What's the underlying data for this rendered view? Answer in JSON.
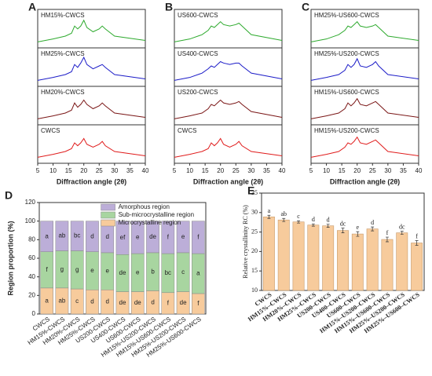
{
  "chart_data": [
    {
      "type": "line",
      "panel": "A",
      "x_label": "Diffraction angle (2θ)",
      "xlim": [
        5,
        40
      ],
      "xticks": [
        5,
        10,
        15,
        20,
        25,
        30,
        35,
        40
      ],
      "x": [
        5,
        10,
        14,
        16,
        17,
        18,
        19,
        20,
        21,
        23,
        25,
        26,
        27,
        30,
        40
      ],
      "series": [
        {
          "name": "HM15%-CWCS",
          "color": "#2eaa2e",
          "values": [
            1,
            2,
            3,
            4,
            6.5,
            5.5,
            6.5,
            8.5,
            6,
            4.5,
            5.5,
            6.5,
            5.5,
            3,
            1.5
          ]
        },
        {
          "name": "HM25%-CWCS",
          "color": "#1c1cc8",
          "values": [
            1,
            2,
            3,
            4,
            6.5,
            5.5,
            7,
            9,
            6.5,
            5,
            6,
            6.5,
            5.5,
            3,
            1.5
          ]
        },
        {
          "name": "HM20%-CWCS",
          "color": "#7a1616",
          "values": [
            1,
            2,
            3,
            4,
            6.5,
            5,
            6,
            7.5,
            6,
            4.5,
            5.5,
            6.5,
            5.5,
            3,
            1.5
          ]
        },
        {
          "name": "CWCS",
          "color": "#e01c1c",
          "values": [
            1,
            2,
            3,
            4,
            6,
            5,
            6,
            7.5,
            5.5,
            4.5,
            5.5,
            6.5,
            5,
            3,
            1.5
          ]
        }
      ]
    },
    {
      "type": "line",
      "panel": "B",
      "x_label": "Diffraction angle (2θ)",
      "xlim": [
        5,
        40
      ],
      "xticks": [
        5,
        10,
        15,
        20,
        25,
        30,
        35,
        40
      ],
      "x": [
        5,
        10,
        14,
        16,
        17,
        18,
        19,
        20,
        21,
        23,
        25,
        26,
        27,
        30,
        40
      ],
      "series": [
        {
          "name": "US600-CWCS",
          "color": "#2eaa2e",
          "values": [
            1,
            2,
            3.5,
            5,
            6.5,
            6,
            7,
            8,
            7,
            6.5,
            7,
            7.5,
            6.5,
            3.5,
            1.5
          ]
        },
        {
          "name": "US400-CWCS",
          "color": "#1c1cc8",
          "values": [
            1,
            2,
            3.5,
            5,
            6,
            5.5,
            6.5,
            7.5,
            7,
            6.5,
            7,
            7,
            6,
            3.5,
            1.5
          ]
        },
        {
          "name": "US200-CWCS",
          "color": "#7a1616",
          "values": [
            1,
            2,
            3,
            4.5,
            6,
            5.5,
            6.5,
            7.5,
            6.5,
            6,
            6.5,
            7,
            6,
            3.5,
            1.5
          ]
        },
        {
          "name": "CWCS",
          "color": "#e01c1c",
          "values": [
            1,
            2,
            3,
            4,
            6,
            5,
            6,
            7.5,
            5.5,
            4.5,
            5.5,
            6.5,
            5,
            3,
            1.5
          ]
        }
      ]
    },
    {
      "type": "line",
      "panel": "C",
      "x_label": "Diffraction angle (2θ)",
      "xlim": [
        5,
        40
      ],
      "xticks": [
        5,
        10,
        15,
        20,
        25,
        30,
        35,
        40
      ],
      "x": [
        5,
        10,
        14,
        16,
        17,
        18,
        19,
        20,
        21,
        23,
        25,
        26,
        27,
        30,
        40
      ],
      "series": [
        {
          "name": "HM25%-US600-CWCS",
          "color": "#2eaa2e",
          "values": [
            1,
            2,
            3.5,
            5,
            6.5,
            6,
            7,
            8,
            6.5,
            6,
            6.5,
            7,
            6,
            3,
            1.5
          ]
        },
        {
          "name": "HM25%-US200-CWCS",
          "color": "#1c1cc8",
          "values": [
            1,
            2,
            3,
            4.5,
            6.5,
            5.5,
            6.5,
            8.5,
            6,
            5.5,
            6.5,
            7.5,
            6,
            3,
            1.5
          ]
        },
        {
          "name": "HM15%-US600-CWCS",
          "color": "#7a1616",
          "values": [
            1,
            2,
            3,
            4.5,
            6.5,
            5.5,
            6.5,
            8,
            6,
            5.5,
            6.5,
            7,
            6,
            3,
            1.5
          ]
        },
        {
          "name": "HM15%-US200-CWCS",
          "color": "#e01c1c",
          "values": [
            1,
            2,
            3,
            4.5,
            6,
            5.5,
            6.5,
            8,
            6,
            5.5,
            6.5,
            7,
            6,
            3,
            1.5
          ]
        }
      ]
    },
    {
      "type": "stacked_bar",
      "panel": "D",
      "y_label": "Region proportion (%)",
      "ylim": [
        0,
        120
      ],
      "yticks": [
        0,
        20,
        40,
        60,
        80,
        100,
        120
      ],
      "categories": [
        "CWCS",
        "HM15%-CWCS",
        "HM20%-CWCS",
        "HM25%-CWCS",
        "US200-CWCS",
        "US400-CWCS",
        "US600-CWCS",
        "HM15%-US200-CWCS",
        "HM15%-US600-CWCS",
        "HM25%-US200-CWCS",
        "HM25%-US600-CWCS"
      ],
      "series": [
        {
          "name": "Microcrystalline region",
          "color": "#f7cb9c",
          "values": [
            28,
            28,
            27,
            26,
            26,
            24,
            24,
            25,
            23,
            24,
            22
          ],
          "letters": [
            "a",
            "ab",
            "c",
            "d",
            "d",
            "de",
            "de",
            "d",
            "f",
            "de",
            "f"
          ]
        },
        {
          "name": "Sub-microcrystalline region",
          "color": "#a8d5a0",
          "values": [
            39,
            40,
            41,
            41,
            40,
            40,
            41,
            41,
            42,
            42,
            43
          ],
          "letters": [
            "f",
            "g",
            "g",
            "e",
            "e",
            "de",
            "e",
            "b",
            "bc",
            "c",
            "a"
          ]
        },
        {
          "name": "Amorphous region",
          "color": "#bcaed8",
          "values": [
            33,
            32,
            32,
            33,
            34,
            36,
            35,
            34,
            35,
            34,
            35
          ],
          "letters": [
            "a",
            "ab",
            "bc",
            "d",
            "d",
            "ef",
            "e",
            "de",
            "f",
            "e",
            "f"
          ]
        }
      ]
    },
    {
      "type": "bar",
      "panel": "E",
      "y_label": "Relative crystallinity RC (%)",
      "ylim": [
        10,
        35
      ],
      "yticks": [
        10,
        15,
        20,
        25,
        30,
        35
      ],
      "color": "#f7cb9c",
      "categories": [
        "CWCS",
        "HM15%–CWCS",
        "HM20%–CWCS",
        "HM25%–CWCS",
        "US200–CWCS",
        "US400–CWCS",
        "US600–CWCS",
        "HM15%–US200–CWCS",
        "HM15%–US600–CWCS",
        "HM25%–US200–CWCS",
        "HM25%–US600–CWCS"
      ],
      "values": [
        28.9,
        28.1,
        27.6,
        26.8,
        26.6,
        25.4,
        24.5,
        25.8,
        23.1,
        24.8,
        22.2
      ],
      "errors": [
        0.4,
        0.4,
        0.3,
        0.3,
        0.4,
        0.6,
        0.6,
        0.5,
        0.6,
        0.4,
        0.6
      ],
      "letters": [
        "a",
        "ab",
        "c",
        "d",
        "d",
        "dc",
        "e",
        "d",
        "f",
        "dc",
        "f"
      ]
    }
  ]
}
